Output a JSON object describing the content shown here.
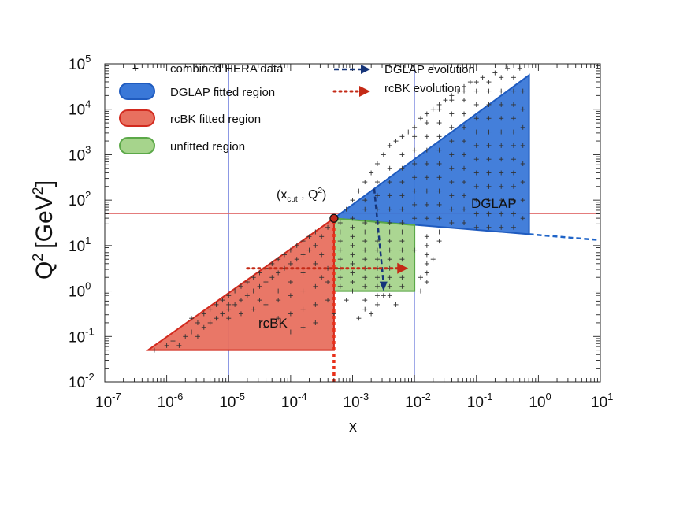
{
  "chart_data": {
    "type": "scatter",
    "title": "",
    "xlabel": "x",
    "ylabel_main": "Q",
    "ylabel_sup": "2",
    "ylabel_units": "[GeV",
    "ylabel_units_sup": "2",
    "ylabel_close": "]",
    "x_scale": "log",
    "y_scale": "log",
    "xlim_exp": [
      -7,
      1
    ],
    "ylim_exp": [
      -2,
      5
    ],
    "x_ticks": [
      {
        "base": "10",
        "exp": "-7",
        "v": -7
      },
      {
        "base": "10",
        "exp": "-6",
        "v": -6
      },
      {
        "base": "10",
        "exp": "-5",
        "v": -5
      },
      {
        "base": "10",
        "exp": "-4",
        "v": -4
      },
      {
        "base": "10",
        "exp": "-3",
        "v": -3
      },
      {
        "base": "10",
        "exp": "-2",
        "v": -2
      },
      {
        "base": "10",
        "exp": "-1",
        "v": -1
      },
      {
        "base": "10",
        "exp": "0",
        "v": 0
      },
      {
        "base": "10",
        "exp": "1",
        "v": 1
      }
    ],
    "y_ticks": [
      {
        "base": "10",
        "exp": "-2",
        "v": -2
      },
      {
        "base": "10",
        "exp": "-1",
        "v": -1
      },
      {
        "base": "10",
        "exp": "0",
        "v": 0
      },
      {
        "base": "10",
        "exp": "1",
        "v": 1
      },
      {
        "base": "10",
        "exp": "2",
        "v": 2
      },
      {
        "base": "10",
        "exp": "3",
        "v": 3
      },
      {
        "base": "10",
        "exp": "4",
        "v": 4
      },
      {
        "base": "10",
        "exp": "5",
        "v": 5
      }
    ],
    "regions": [
      {
        "name": "DGLAP fitted region",
        "color": "#3a78d8",
        "edge": "#1f5bbf",
        "polygon_log": [
          [
            -3.3,
            1.6
          ],
          [
            -0.15,
            4.75
          ],
          [
            -0.15,
            1.25
          ],
          [
            -3.3,
            1.6
          ]
        ]
      },
      {
        "name": "rcBK fitted region",
        "color": "#e8705f",
        "edge": "#d22a1e",
        "polygon_log": [
          [
            -6.3,
            -1.3
          ],
          [
            -3.3,
            1.6
          ],
          [
            -3.3,
            -1.3
          ]
        ]
      },
      {
        "name": "unfitted region",
        "color": "#a6d48c",
        "edge": "#5ba848",
        "polygon_log": [
          [
            -3.3,
            0.0
          ],
          [
            -3.3,
            1.6
          ],
          [
            -2.0,
            1.45
          ],
          [
            -2.0,
            0.0
          ]
        ]
      }
    ],
    "reference_lines": {
      "x_log": [
        -5,
        -2
      ],
      "y_log": [
        0,
        1.7
      ],
      "x_color": "#5b6cd8",
      "y_color": "#e06a6a"
    },
    "evolution_lines": {
      "dglap_extension": {
        "from": [
          -0.15,
          1.25
        ],
        "to": [
          1.0,
          1.12
        ],
        "color": "#1f64c8"
      },
      "dglap_arrow": {
        "from": [
          -2.65,
          2.25
        ],
        "to": [
          -2.5,
          0.0
        ],
        "color": "#16357a"
      },
      "rcbk_arrow": {
        "from": [
          -4.7,
          0.5
        ],
        "to": [
          -2.1,
          0.5
        ],
        "color": "#c42a16"
      },
      "xcut_line": {
        "x": -3.3,
        "from": -2.0,
        "to": 1.6,
        "color": "#e8301a"
      }
    },
    "xcut_point": {
      "x_log": -3.3,
      "y_log": 1.6,
      "label_pre": "(x",
      "label_sub": "cut",
      "label_post": " , Q",
      "label_sup": "2",
      "label_close": ")"
    },
    "region_labels": {
      "dglap": "DGLAP",
      "rcbk": "rcBK"
    },
    "legend": {
      "position": "top-left",
      "items": [
        {
          "label": "combined HERA data",
          "kind": "marker"
        },
        {
          "label": "DGLAP fitted region",
          "kind": "patch",
          "fill": "#3a78d8",
          "edge": "#1f5bbf"
        },
        {
          "label": "rcBK fitted region",
          "kind": "patch",
          "fill": "#e8705f",
          "edge": "#d22a1e"
        },
        {
          "label": "unfitted region",
          "kind": "patch",
          "fill": "#a6d48c",
          "edge": "#5ba848"
        },
        {
          "label": "DGLAP evolution",
          "kind": "arrow",
          "color": "#16357a"
        },
        {
          "label": "rcBK evolution",
          "kind": "arrow",
          "color": "#c42a16"
        }
      ]
    },
    "hera_data_log": [
      [
        -6.2,
        -1.3
      ],
      [
        -6.0,
        -1.2
      ],
      [
        -5.9,
        -1.1
      ],
      [
        -5.8,
        -1.2
      ],
      [
        -5.7,
        -1.0
      ],
      [
        -5.6,
        -0.9
      ],
      [
        -5.5,
        -1.0
      ],
      [
        -5.4,
        -0.8
      ],
      [
        -5.3,
        -0.7
      ],
      [
        -5.2,
        -0.6
      ],
      [
        -5.1,
        -0.5
      ],
      [
        -5.0,
        -0.4
      ],
      [
        -4.9,
        -0.3
      ],
      [
        -4.8,
        -0.2
      ],
      [
        -4.7,
        -0.1
      ],
      [
        -4.6,
        0.0
      ],
      [
        -4.5,
        0.1
      ],
      [
        -4.4,
        0.2
      ],
      [
        -4.3,
        0.3
      ],
      [
        -4.2,
        0.4
      ],
      [
        -4.1,
        0.5
      ],
      [
        -4.0,
        0.6
      ],
      [
        -3.9,
        0.7
      ],
      [
        -3.8,
        0.8
      ],
      [
        -3.7,
        0.9
      ],
      [
        -3.6,
        1.0
      ],
      [
        -3.5,
        1.2
      ],
      [
        -3.4,
        1.4
      ],
      [
        -5.6,
        -0.6
      ],
      [
        -5.5,
        -0.7
      ],
      [
        -5.4,
        -0.5
      ],
      [
        -5.3,
        -0.4
      ],
      [
        -5.2,
        -0.3
      ],
      [
        -5.1,
        -0.2
      ],
      [
        -5.0,
        -0.1
      ],
      [
        -5.0,
        -0.3
      ],
      [
        -4.9,
        0.0
      ],
      [
        -4.8,
        0.1
      ],
      [
        -4.7,
        0.2
      ],
      [
        -4.6,
        0.3
      ],
      [
        -4.5,
        0.4
      ],
      [
        -4.5,
        -0.2
      ],
      [
        -4.4,
        0.5
      ],
      [
        -4.3,
        0.6
      ],
      [
        -4.2,
        0.7
      ],
      [
        -4.1,
        0.8
      ],
      [
        -4.0,
        0.9
      ],
      [
        -3.9,
        1.0
      ],
      [
        -3.8,
        1.1
      ],
      [
        -3.7,
        1.2
      ],
      [
        -3.6,
        1.3
      ],
      [
        -5.0,
        -0.6
      ],
      [
        -4.8,
        -0.5
      ],
      [
        -4.6,
        -0.4
      ],
      [
        -4.4,
        -0.3
      ],
      [
        -4.2,
        -0.2
      ],
      [
        -4.0,
        -0.1
      ],
      [
        -3.8,
        0.0
      ],
      [
        -3.6,
        0.1
      ],
      [
        -3.5,
        0.3
      ],
      [
        -3.4,
        0.5
      ],
      [
        -4.4,
        -0.8
      ],
      [
        -4.2,
        -0.6
      ],
      [
        -4.0,
        -0.5
      ],
      [
        -3.8,
        -0.4
      ],
      [
        -3.6,
        -0.3
      ],
      [
        -3.4,
        -0.2
      ],
      [
        -3.4,
        0.2
      ],
      [
        -3.6,
        0.6
      ],
      [
        -3.8,
        0.4
      ],
      [
        -4.0,
        0.2
      ],
      [
        -4.2,
        0.0
      ],
      [
        -3.5,
        0.8
      ],
      [
        -3.6,
        -0.7
      ],
      [
        -3.8,
        -0.8
      ],
      [
        -4.0,
        -0.9
      ],
      [
        -3.2,
        1.5
      ],
      [
        -3.2,
        1.3
      ],
      [
        -3.2,
        1.1
      ],
      [
        -3.2,
        0.9
      ],
      [
        -3.2,
        0.7
      ],
      [
        -3.2,
        0.5
      ],
      [
        -3.2,
        0.3
      ],
      [
        -3.2,
        0.1
      ],
      [
        -3.0,
        1.6
      ],
      [
        -3.0,
        1.4
      ],
      [
        -3.0,
        1.2
      ],
      [
        -3.0,
        1.0
      ],
      [
        -3.0,
        0.8
      ],
      [
        -3.0,
        0.6
      ],
      [
        -3.0,
        0.4
      ],
      [
        -3.0,
        0.2
      ],
      [
        -3.0,
        0.0
      ],
      [
        -2.8,
        1.5
      ],
      [
        -2.8,
        1.3
      ],
      [
        -2.8,
        1.1
      ],
      [
        -2.8,
        0.9
      ],
      [
        -2.8,
        0.7
      ],
      [
        -2.8,
        0.5
      ],
      [
        -2.8,
        0.3
      ],
      [
        -2.8,
        0.1
      ],
      [
        -2.8,
        -0.2
      ],
      [
        -2.8,
        -0.4
      ],
      [
        -2.6,
        1.5
      ],
      [
        -2.6,
        1.3
      ],
      [
        -2.6,
        1.1
      ],
      [
        -2.6,
        0.9
      ],
      [
        -2.6,
        0.7
      ],
      [
        -2.6,
        0.5
      ],
      [
        -2.6,
        0.3
      ],
      [
        -2.6,
        0.1
      ],
      [
        -2.6,
        -0.1
      ],
      [
        -2.6,
        -0.3
      ],
      [
        -2.4,
        1.5
      ],
      [
        -2.4,
        1.3
      ],
      [
        -2.4,
        1.1
      ],
      [
        -2.4,
        0.9
      ],
      [
        -2.4,
        0.7
      ],
      [
        -2.4,
        0.5
      ],
      [
        -2.4,
        0.3
      ],
      [
        -2.4,
        0.1
      ],
      [
        -2.4,
        -0.1
      ],
      [
        -2.2,
        1.5
      ],
      [
        -2.2,
        1.3
      ],
      [
        -2.2,
        1.1
      ],
      [
        -2.2,
        0.9
      ],
      [
        -2.2,
        0.7
      ],
      [
        -2.2,
        0.5
      ],
      [
        -2.2,
        0.3
      ],
      [
        -2.2,
        0.1
      ],
      [
        -1.8,
        1.2
      ],
      [
        -1.8,
        1.0
      ],
      [
        -1.8,
        0.8
      ],
      [
        -1.8,
        0.6
      ],
      [
        -1.8,
        0.4
      ],
      [
        -1.8,
        0.2
      ],
      [
        -1.6,
        1.3
      ],
      [
        -1.6,
        1.1
      ],
      [
        -1.9,
        0.3
      ],
      [
        -1.9,
        0.0
      ],
      [
        -3.1,
        -0.2
      ],
      [
        -2.9,
        -0.6
      ],
      [
        -2.7,
        -0.5
      ],
      [
        -2.5,
        -0.1
      ],
      [
        -2.3,
        -0.3
      ],
      [
        -3.3,
        -0.5
      ],
      [
        -2.0,
        0.9
      ],
      [
        -1.7,
        0.7
      ],
      [
        -3.1,
        1.8
      ],
      [
        -3.0,
        2.0
      ],
      [
        -2.9,
        2.2
      ],
      [
        -2.8,
        2.4
      ],
      [
        -2.7,
        2.6
      ],
      [
        -2.6,
        2.8
      ],
      [
        -2.5,
        3.0
      ],
      [
        -2.4,
        3.2
      ],
      [
        -2.3,
        3.3
      ],
      [
        -2.2,
        3.4
      ],
      [
        -2.1,
        3.5
      ],
      [
        -2.0,
        3.6
      ],
      [
        -1.9,
        3.8
      ],
      [
        -1.8,
        3.9
      ],
      [
        -1.7,
        4.0
      ],
      [
        -1.6,
        4.1
      ],
      [
        -1.5,
        4.2
      ],
      [
        -1.4,
        4.3
      ],
      [
        -1.3,
        4.4
      ],
      [
        -1.2,
        4.5
      ],
      [
        -1.1,
        4.6
      ],
      [
        -1.0,
        4.6
      ],
      [
        -0.9,
        4.7
      ],
      [
        -0.7,
        4.8
      ],
      [
        -0.5,
        4.9
      ],
      [
        -0.3,
        4.9
      ],
      [
        -2.8,
        1.8
      ],
      [
        -2.8,
        2.0
      ],
      [
        -2.6,
        1.8
      ],
      [
        -2.6,
        2.1
      ],
      [
        -2.6,
        2.4
      ],
      [
        -2.4,
        1.8
      ],
      [
        -2.4,
        2.1
      ],
      [
        -2.4,
        2.4
      ],
      [
        -2.4,
        2.7
      ],
      [
        -2.2,
        1.8
      ],
      [
        -2.2,
        2.1
      ],
      [
        -2.2,
        2.4
      ],
      [
        -2.2,
        2.7
      ],
      [
        -2.2,
        3.0
      ],
      [
        -2.0,
        1.6
      ],
      [
        -2.0,
        1.9
      ],
      [
        -2.0,
        2.2
      ],
      [
        -2.0,
        2.5
      ],
      [
        -2.0,
        2.8
      ],
      [
        -2.0,
        3.1
      ],
      [
        -2.0,
        3.4
      ],
      [
        -1.8,
        1.6
      ],
      [
        -1.8,
        1.9
      ],
      [
        -1.8,
        2.2
      ],
      [
        -1.8,
        2.5
      ],
      [
        -1.8,
        2.8
      ],
      [
        -1.8,
        3.1
      ],
      [
        -1.8,
        3.4
      ],
      [
        -1.8,
        3.7
      ],
      [
        -1.6,
        1.6
      ],
      [
        -1.6,
        1.9
      ],
      [
        -1.6,
        2.2
      ],
      [
        -1.6,
        2.5
      ],
      [
        -1.6,
        2.8
      ],
      [
        -1.6,
        3.1
      ],
      [
        -1.6,
        3.4
      ],
      [
        -1.6,
        3.7
      ],
      [
        -1.6,
        4.0
      ],
      [
        -1.4,
        1.5
      ],
      [
        -1.4,
        1.8
      ],
      [
        -1.4,
        2.1
      ],
      [
        -1.4,
        2.4
      ],
      [
        -1.4,
        2.7
      ],
      [
        -1.4,
        3.0
      ],
      [
        -1.4,
        3.3
      ],
      [
        -1.4,
        3.6
      ],
      [
        -1.4,
        3.9
      ],
      [
        -1.4,
        4.2
      ],
      [
        -1.2,
        1.5
      ],
      [
        -1.2,
        1.8
      ],
      [
        -1.2,
        2.1
      ],
      [
        -1.2,
        2.4
      ],
      [
        -1.2,
        2.7
      ],
      [
        -1.2,
        3.0
      ],
      [
        -1.2,
        3.3
      ],
      [
        -1.2,
        3.6
      ],
      [
        -1.2,
        3.9
      ],
      [
        -1.2,
        4.2
      ],
      [
        -1.2,
        4.4
      ],
      [
        -1.0,
        1.4
      ],
      [
        -1.0,
        1.7
      ],
      [
        -1.0,
        2.0
      ],
      [
        -1.0,
        2.3
      ],
      [
        -1.0,
        2.6
      ],
      [
        -1.0,
        2.9
      ],
      [
        -1.0,
        3.2
      ],
      [
        -1.0,
        3.5
      ],
      [
        -1.0,
        3.8
      ],
      [
        -1.0,
        4.1
      ],
      [
        -1.0,
        4.4
      ],
      [
        -0.8,
        1.4
      ],
      [
        -0.8,
        1.7
      ],
      [
        -0.8,
        2.0
      ],
      [
        -0.8,
        2.3
      ],
      [
        -0.8,
        2.6
      ],
      [
        -0.8,
        2.9
      ],
      [
        -0.8,
        3.2
      ],
      [
        -0.8,
        3.5
      ],
      [
        -0.8,
        3.8
      ],
      [
        -0.8,
        4.1
      ],
      [
        -0.8,
        4.4
      ],
      [
        -0.8,
        4.6
      ],
      [
        -0.6,
        1.4
      ],
      [
        -0.6,
        1.7
      ],
      [
        -0.6,
        2.0
      ],
      [
        -0.6,
        2.3
      ],
      [
        -0.6,
        2.6
      ],
      [
        -0.6,
        2.9
      ],
      [
        -0.6,
        3.2
      ],
      [
        -0.6,
        3.5
      ],
      [
        -0.6,
        3.8
      ],
      [
        -0.6,
        4.1
      ],
      [
        -0.6,
        4.4
      ],
      [
        -0.6,
        4.7
      ],
      [
        -0.4,
        1.4
      ],
      [
        -0.4,
        1.7
      ],
      [
        -0.4,
        2.0
      ],
      [
        -0.4,
        2.3
      ],
      [
        -0.4,
        2.6
      ],
      [
        -0.4,
        2.9
      ],
      [
        -0.4,
        3.2
      ],
      [
        -0.4,
        3.5
      ],
      [
        -0.4,
        3.8
      ],
      [
        -0.4,
        4.1
      ],
      [
        -0.4,
        4.4
      ],
      [
        -0.4,
        4.7
      ],
      [
        -0.25,
        1.6
      ],
      [
        -0.25,
        2.0
      ],
      [
        -0.25,
        2.4
      ],
      [
        -0.25,
        2.8
      ],
      [
        -0.25,
        3.2
      ],
      [
        -0.25,
        3.6
      ],
      [
        -0.25,
        4.0
      ],
      [
        -0.25,
        4.4
      ]
    ]
  }
}
